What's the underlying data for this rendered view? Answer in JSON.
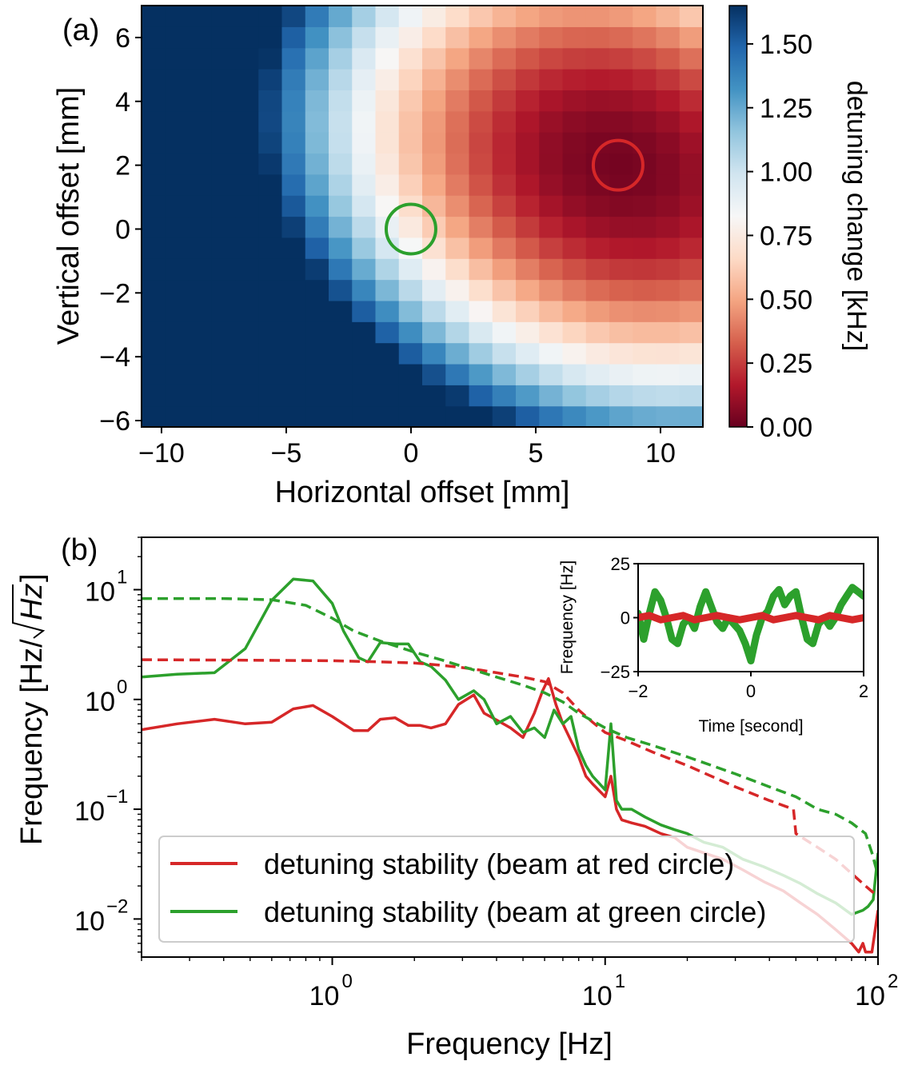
{
  "chart_data": [
    {
      "type": "heatmap",
      "panel_label": "(a)",
      "xlabel": "Horizontal offset [mm]",
      "ylabel": "Vertical offset [mm]",
      "xlim": [
        -10.8,
        11.7
      ],
      "ylim": [
        -6.2,
        7.0
      ],
      "x_ticks": [
        -10,
        -5,
        0,
        5,
        10
      ],
      "x_tick_labels": [
        "−10",
        "−5",
        "0",
        "5",
        "10"
      ],
      "y_ticks": [
        -6,
        -4,
        -2,
        0,
        2,
        4,
        6
      ],
      "y_tick_labels": [
        "−6",
        "−4",
        "−2",
        "0",
        "2",
        "4",
        "6"
      ],
      "grid_x_start": -10.8,
      "grid_x_step": 0.9375,
      "grid_x_count": 24,
      "grid_y_start": -6.2,
      "grid_y_step": 0.66,
      "grid_y_count": 20,
      "colormap": "RdBu",
      "colorbar": {
        "label": "detuning change [kHz]",
        "min": 0.0,
        "max": 1.65,
        "ticks": [
          0.0,
          0.25,
          0.5,
          0.75,
          1.0,
          1.25,
          1.5
        ],
        "tick_labels": [
          "0.00",
          "0.25",
          "0.50",
          "0.75",
          "1.00",
          "1.25",
          "1.50"
        ]
      },
      "markers": [
        {
          "name": "red-circle",
          "x": 8.3,
          "y": 2.0,
          "color": "#d62728"
        },
        {
          "name": "green-circle",
          "x": 0.0,
          "y": 0.0,
          "color": "#2ca02c"
        }
      ]
    },
    {
      "type": "line",
      "panel_label": "(b)",
      "xscale": "log",
      "yscale": "log",
      "xlabel": "Frequency [Hz]",
      "ylabel": "Frequency [Hz/√Hz]",
      "ylabel_main": "Frequency [Hz/",
      "ylabel_sqrt": "Hz",
      "ylabel_close": "]",
      "xlim": [
        0.2,
        100
      ],
      "ylim": [
        0.0045,
        30
      ],
      "x_ticks": [
        1,
        10,
        100
      ],
      "x_tick_labels": [
        "10",
        "10",
        "10"
      ],
      "x_tick_exponents": [
        "0",
        "1",
        "2"
      ],
      "y_ticks": [
        0.01,
        0.1,
        1,
        10
      ],
      "y_tick_labels": [
        "10",
        "10",
        "10",
        "10"
      ],
      "y_tick_exponents": [
        "−2",
        "−1",
        "0",
        "1"
      ],
      "legend": {
        "location": "lower-left",
        "entries": [
          {
            "label": "detuning stability (beam at red circle)",
            "color": "#d62728"
          },
          {
            "label": "detuning stability (beam at green circle)",
            "color": "#2ca02c"
          }
        ]
      },
      "series": [
        {
          "name": "detuning stability (beam at red circle)",
          "style": "solid",
          "color": "#d62728",
          "x": [
            0.2,
            0.27,
            0.37,
            0.48,
            0.6,
            0.72,
            0.85,
            1.0,
            1.2,
            1.35,
            1.5,
            1.7,
            1.9,
            2.1,
            2.3,
            2.6,
            2.9,
            3.3,
            3.6,
            4.0,
            4.5,
            5.0,
            5.5,
            5.9,
            6.2,
            6.6,
            7.0,
            7.5,
            8.0,
            8.5,
            9.0,
            10.0,
            10.5,
            11.0,
            11.5,
            12.5,
            14,
            16,
            18,
            20,
            23,
            27,
            32,
            38,
            45,
            52,
            60,
            70,
            80,
            85,
            88,
            90,
            95,
            100
          ],
          "y": [
            0.53,
            0.6,
            0.66,
            0.6,
            0.62,
            0.82,
            0.88,
            0.7,
            0.52,
            0.52,
            0.66,
            0.68,
            0.58,
            0.58,
            0.55,
            0.6,
            0.9,
            1.1,
            0.75,
            0.65,
            0.55,
            0.45,
            0.75,
            1.2,
            1.55,
            0.9,
            0.6,
            0.42,
            0.3,
            0.2,
            0.17,
            0.13,
            0.2,
            0.1,
            0.08,
            0.075,
            0.07,
            0.06,
            0.055,
            0.045,
            0.04,
            0.035,
            0.028,
            0.022,
            0.018,
            0.014,
            0.011,
            0.008,
            0.006,
            0.005,
            0.006,
            0.005,
            0.005,
            0.012
          ]
        },
        {
          "name": "detuning stability (beam at green circle)",
          "style": "solid",
          "color": "#2ca02c",
          "x": [
            0.2,
            0.27,
            0.37,
            0.48,
            0.6,
            0.72,
            0.85,
            1.0,
            1.1,
            1.25,
            1.35,
            1.5,
            1.7,
            1.9,
            2.1,
            2.3,
            2.6,
            2.9,
            3.3,
            3.6,
            4.0,
            4.5,
            5.0,
            5.5,
            6.0,
            6.5,
            7.0,
            7.5,
            8.0,
            8.5,
            9.0,
            10.0,
            10.5,
            11.0,
            11.5,
            12.5,
            14,
            16,
            18,
            20,
            23,
            27,
            32,
            38,
            45,
            52,
            60,
            70,
            80,
            88,
            92,
            96,
            100
          ],
          "y": [
            1.6,
            1.7,
            1.75,
            2.9,
            8.0,
            12.5,
            12.0,
            7.5,
            4.2,
            2.4,
            2.2,
            3.3,
            3.2,
            3.2,
            2.2,
            2.0,
            1.5,
            1.0,
            1.2,
            1.0,
            0.6,
            0.7,
            0.5,
            0.55,
            0.45,
            0.8,
            0.6,
            0.7,
            0.35,
            0.25,
            0.2,
            0.15,
            0.6,
            0.12,
            0.1,
            0.1,
            0.085,
            0.072,
            0.065,
            0.06,
            0.05,
            0.045,
            0.035,
            0.03,
            0.025,
            0.021,
            0.017,
            0.014,
            0.011,
            0.012,
            0.013,
            0.015,
            0.04
          ]
        },
        {
          "name": "red cumulative",
          "style": "dashed",
          "color": "#d62728",
          "x": [
            0.2,
            0.5,
            1.0,
            1.5,
            2.0,
            2.5,
            3.0,
            3.5,
            4.0,
            5.0,
            6.0,
            7.0,
            8.0,
            9.0,
            10,
            12,
            15,
            20,
            30,
            40,
            49,
            50,
            60,
            70,
            80,
            90,
            100
          ],
          "y": [
            2.3,
            2.28,
            2.25,
            2.2,
            2.15,
            2.05,
            1.95,
            1.85,
            1.75,
            1.6,
            1.45,
            1.15,
            0.8,
            0.62,
            0.5,
            0.42,
            0.33,
            0.25,
            0.16,
            0.12,
            0.1,
            0.06,
            0.045,
            0.035,
            0.026,
            0.02,
            0.016
          ]
        },
        {
          "name": "green cumulative",
          "style": "dashed",
          "color": "#2ca02c",
          "x": [
            0.2,
            0.4,
            0.6,
            0.8,
            1.0,
            1.2,
            1.5,
            2.0,
            2.5,
            3.0,
            4.0,
            5.0,
            6.0,
            7.0,
            8.0,
            10,
            12,
            15,
            20,
            30,
            40,
            50,
            60,
            70,
            80,
            90,
            95,
            100
          ],
          "y": [
            8.3,
            8.3,
            8.1,
            7.2,
            5.5,
            4.2,
            3.4,
            2.7,
            2.3,
            2.0,
            1.6,
            1.35,
            1.15,
            0.95,
            0.75,
            0.55,
            0.45,
            0.38,
            0.3,
            0.21,
            0.16,
            0.13,
            0.1,
            0.09,
            0.075,
            0.06,
            0.04,
            0.025
          ]
        }
      ]
    },
    {
      "type": "line",
      "panel_label": "inset",
      "xlabel": "Time [second]",
      "ylabel": "Frequency [Hz]",
      "xlim": [
        -2,
        2
      ],
      "ylim": [
        -25,
        25
      ],
      "x_ticks": [
        -2,
        0,
        2
      ],
      "x_tick_labels": [
        "−2",
        "0",
        "2"
      ],
      "y_ticks": [
        -25,
        0,
        25
      ],
      "y_tick_labels": [
        "−25",
        "0",
        "25"
      ],
      "series": [
        {
          "name": "green time trace",
          "color": "#2ca02c",
          "x": [
            -2.0,
            -1.9,
            -1.8,
            -1.7,
            -1.6,
            -1.5,
            -1.4,
            -1.3,
            -1.2,
            -1.1,
            -1.0,
            -0.9,
            -0.8,
            -0.7,
            -0.6,
            -0.5,
            -0.4,
            -0.3,
            -0.2,
            -0.1,
            0.0,
            0.1,
            0.2,
            0.3,
            0.4,
            0.5,
            0.6,
            0.7,
            0.8,
            0.9,
            1.0,
            1.1,
            1.2,
            1.3,
            1.4,
            1.5,
            1.6,
            1.7,
            1.8,
            1.9,
            2.0
          ],
          "y": [
            2,
            -10,
            2,
            12,
            8,
            0,
            -10,
            -12,
            -3,
            0,
            -5,
            5,
            12,
            5,
            -2,
            -5,
            0,
            -3,
            -6,
            -12,
            -20,
            -8,
            0,
            3,
            10,
            13,
            6,
            10,
            12,
            0,
            -10,
            -12,
            -3,
            0,
            -4,
            0,
            6,
            10,
            14,
            12,
            10
          ]
        },
        {
          "name": "red time trace",
          "color": "#d62728",
          "x": [
            -2.0,
            -1.8,
            -1.6,
            -1.4,
            -1.2,
            -1.0,
            -0.8,
            -0.6,
            -0.4,
            -0.2,
            0.0,
            0.2,
            0.4,
            0.6,
            0.8,
            1.0,
            1.2,
            1.4,
            1.6,
            1.8,
            2.0
          ],
          "y": [
            0,
            1,
            -1,
            0,
            1,
            -1,
            0,
            1,
            0,
            -1,
            0,
            1,
            -1,
            0,
            1,
            0,
            -1,
            1,
            0,
            -1,
            0
          ]
        }
      ]
    }
  ]
}
